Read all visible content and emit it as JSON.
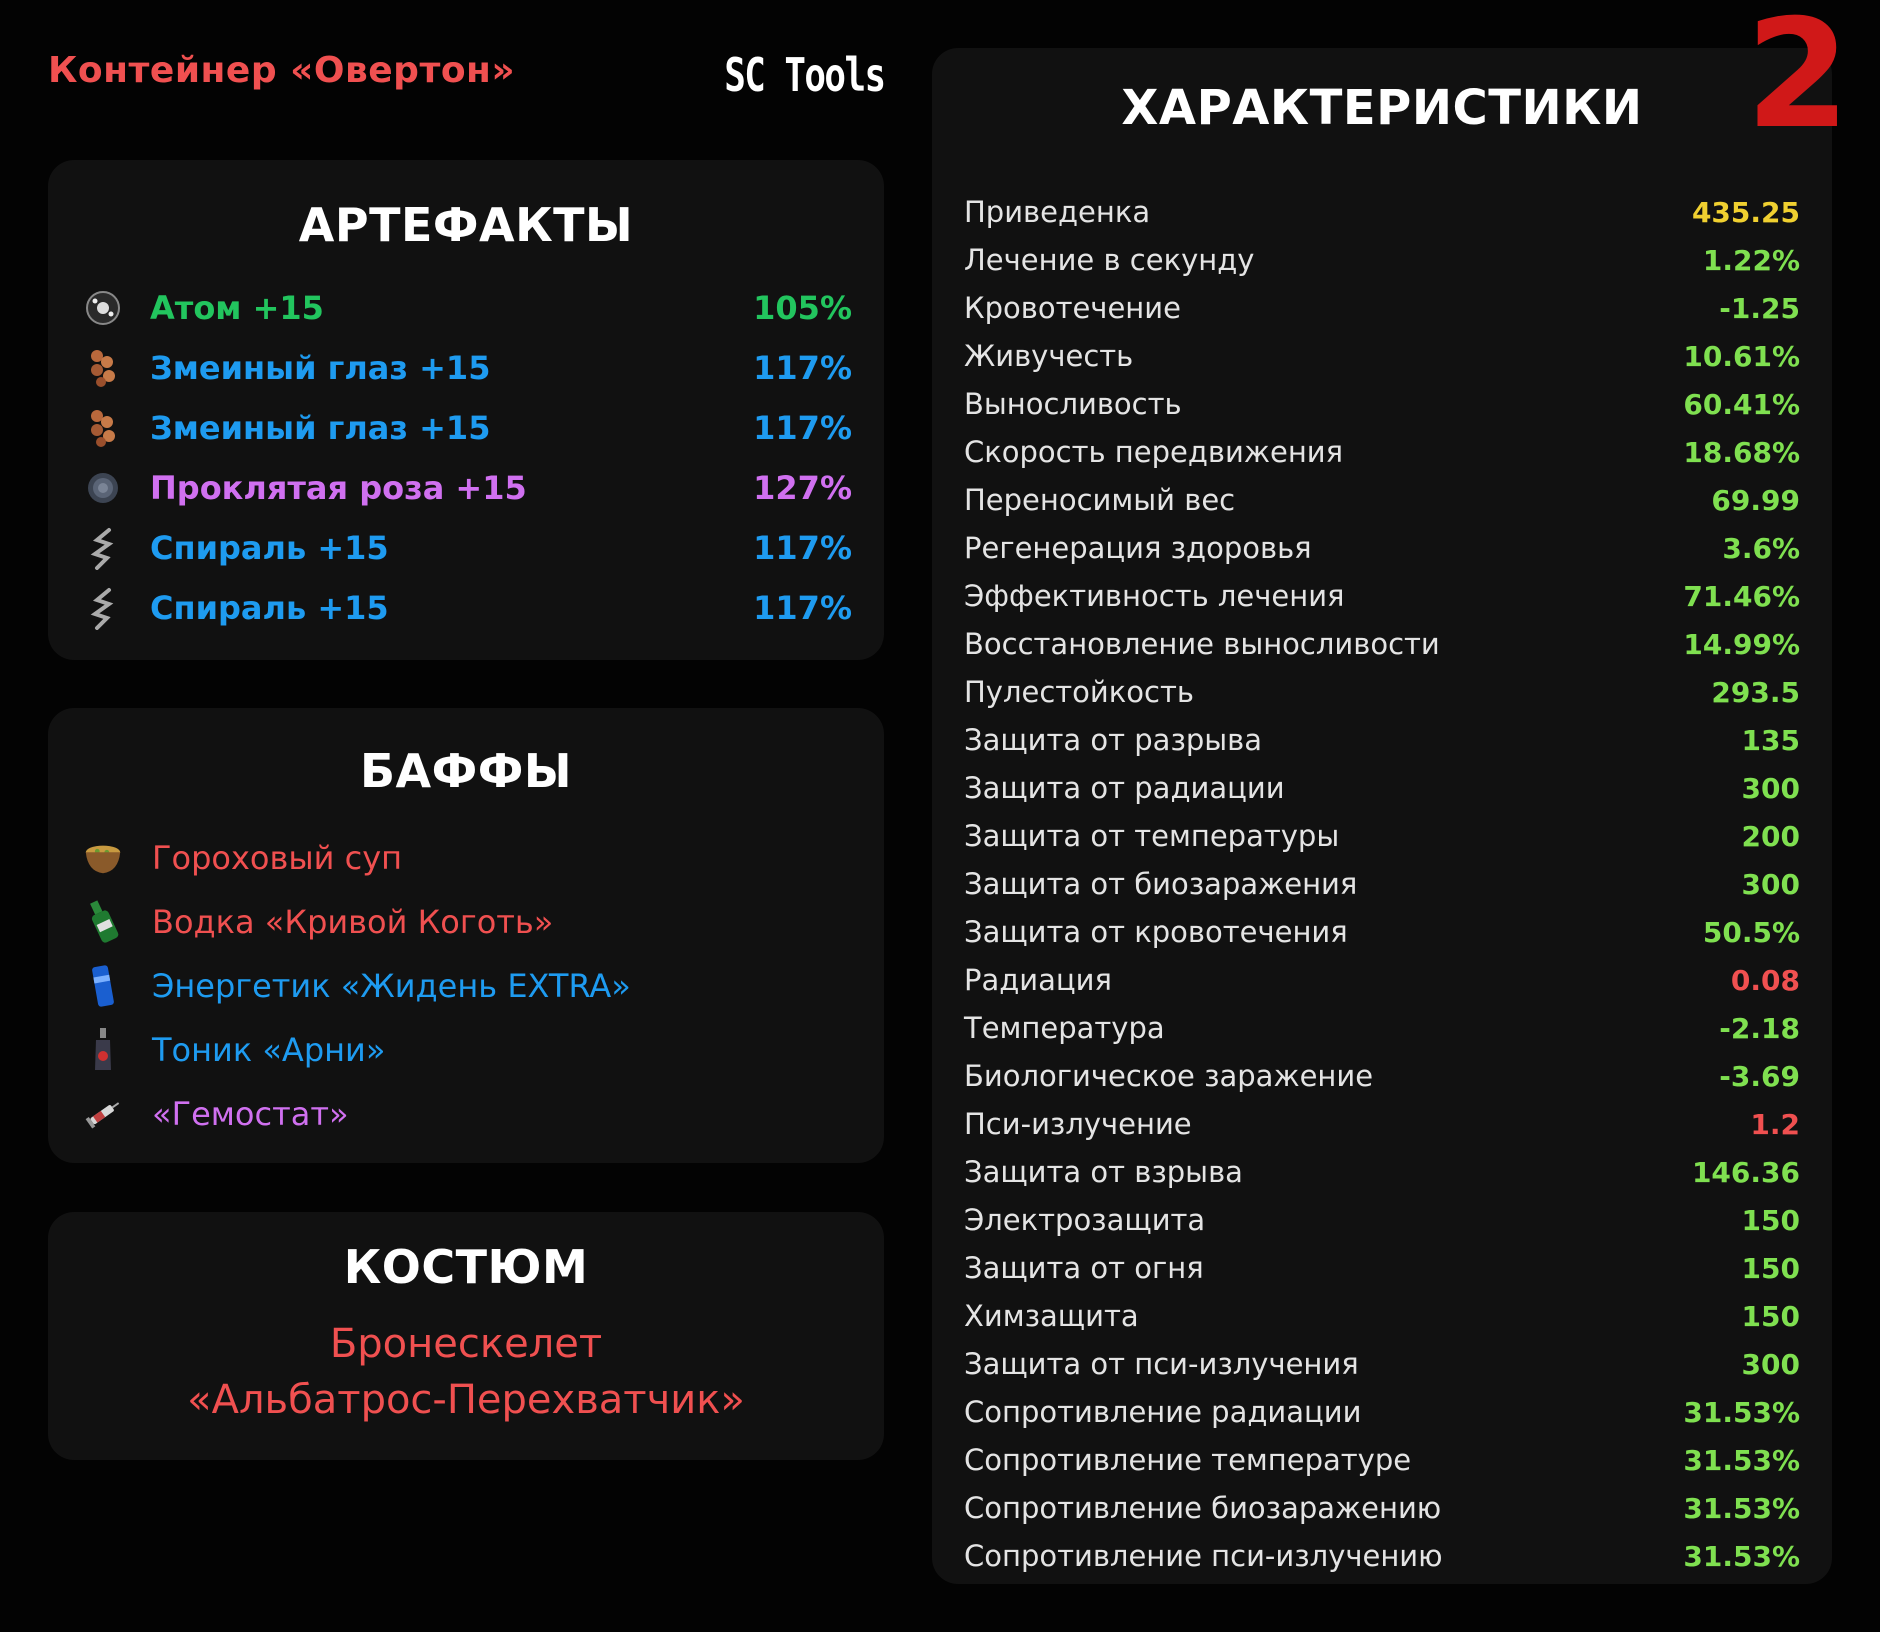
{
  "header": {
    "container_title": "Контейнер «Овертон»",
    "brand": "SC Tools",
    "page_number": "2"
  },
  "artifacts": {
    "title": "АРТЕФАКТЫ",
    "items": [
      {
        "name": "Атом +15",
        "percent": "105%",
        "color": "#22c55e",
        "icon": "atom-artifact-icon"
      },
      {
        "name": "Змеиный глаз +15",
        "percent": "117%",
        "color": "#1e9bf0",
        "icon": "snake-eye-artifact-icon"
      },
      {
        "name": "Змеиный глаз +15",
        "percent": "117%",
        "color": "#1e9bf0",
        "icon": "snake-eye-artifact-icon"
      },
      {
        "name": "Проклятая роза +15",
        "percent": "127%",
        "color": "#d070f0",
        "icon": "cursed-rose-artifact-icon"
      },
      {
        "name": "Спираль +15",
        "percent": "117%",
        "color": "#1e9bf0",
        "icon": "spiral-artifact-icon"
      },
      {
        "name": "Спираль +15",
        "percent": "117%",
        "color": "#1e9bf0",
        "icon": "spiral-artifact-icon"
      }
    ]
  },
  "buffs": {
    "title": "БАФФЫ",
    "items": [
      {
        "name": "Гороховый суп",
        "color": "#f05050",
        "icon": "pea-soup-icon"
      },
      {
        "name": "Водка «Кривой Коготь»",
        "color": "#f05050",
        "icon": "vodka-bottle-icon"
      },
      {
        "name": "Энергетик «Жидень EXTRA»",
        "color": "#1e9bf0",
        "icon": "energy-drink-icon"
      },
      {
        "name": "Тоник «Арни»",
        "color": "#1e9bf0",
        "icon": "tonic-bottle-icon"
      },
      {
        "name": "«Гемостат»",
        "color": "#d070f0",
        "icon": "hemostat-syringe-icon"
      }
    ]
  },
  "suit": {
    "title": "КОСТЮМ",
    "line1": "Бронескелет",
    "line2": "«Альбатрос-Перехватчик»"
  },
  "stats": {
    "title": "ХАРАКТЕРИСТИКИ",
    "items": [
      {
        "label": "Приведенка",
        "value": "435.25",
        "color": "#f0d030"
      },
      {
        "label": "Лечение в секунду",
        "value": "1.22%",
        "color": "#7fe050"
      },
      {
        "label": "Кровотечение",
        "value": "-1.25",
        "color": "#7fe050"
      },
      {
        "label": "Живучесть",
        "value": "10.61%",
        "color": "#7fe050"
      },
      {
        "label": "Выносливость",
        "value": "60.41%",
        "color": "#7fe050"
      },
      {
        "label": "Скорость передвижения",
        "value": "18.68%",
        "color": "#7fe050"
      },
      {
        "label": "Переносимый вес",
        "value": "69.99",
        "color": "#7fe050"
      },
      {
        "label": "Регенерация здоровья",
        "value": "3.6%",
        "color": "#7fe050"
      },
      {
        "label": "Эффективность лечения",
        "value": "71.46%",
        "color": "#7fe050"
      },
      {
        "label": "Восстановление выносливости",
        "value": "14.99%",
        "color": "#7fe050"
      },
      {
        "label": "Пулестойкость",
        "value": "293.5",
        "color": "#7fe050"
      },
      {
        "label": "Защита от разрыва",
        "value": "135",
        "color": "#7fe050"
      },
      {
        "label": "Защита от радиации",
        "value": "300",
        "color": "#7fe050"
      },
      {
        "label": "Защита от температуры",
        "value": "200",
        "color": "#7fe050"
      },
      {
        "label": "Защита от биозаражения",
        "value": "300",
        "color": "#7fe050"
      },
      {
        "label": "Защита от кровотечения",
        "value": "50.5%",
        "color": "#7fe050"
      },
      {
        "label": "Радиация",
        "value": "0.08",
        "color": "#f05050"
      },
      {
        "label": "Температура",
        "value": "-2.18",
        "color": "#7fe050"
      },
      {
        "label": "Биологическое заражение",
        "value": "-3.69",
        "color": "#7fe050"
      },
      {
        "label": "Пси-излучение",
        "value": "1.2",
        "color": "#f05050"
      },
      {
        "label": "Защита от взрыва",
        "value": "146.36",
        "color": "#7fe050"
      },
      {
        "label": "Электрозащита",
        "value": "150",
        "color": "#7fe050"
      },
      {
        "label": "Защита от огня",
        "value": "150",
        "color": "#7fe050"
      },
      {
        "label": "Химзащита",
        "value": "150",
        "color": "#7fe050"
      },
      {
        "label": "Защита от пси-излучения",
        "value": "300",
        "color": "#7fe050"
      },
      {
        "label": "Сопротивление радиации",
        "value": "31.53%",
        "color": "#7fe050"
      },
      {
        "label": "Сопротивление температуре",
        "value": "31.53%",
        "color": "#7fe050"
      },
      {
        "label": "Сопротивление биозаражению",
        "value": "31.53%",
        "color": "#7fe050"
      },
      {
        "label": "Сопротивление пси-излучению",
        "value": "31.53%",
        "color": "#7fe050"
      }
    ]
  }
}
